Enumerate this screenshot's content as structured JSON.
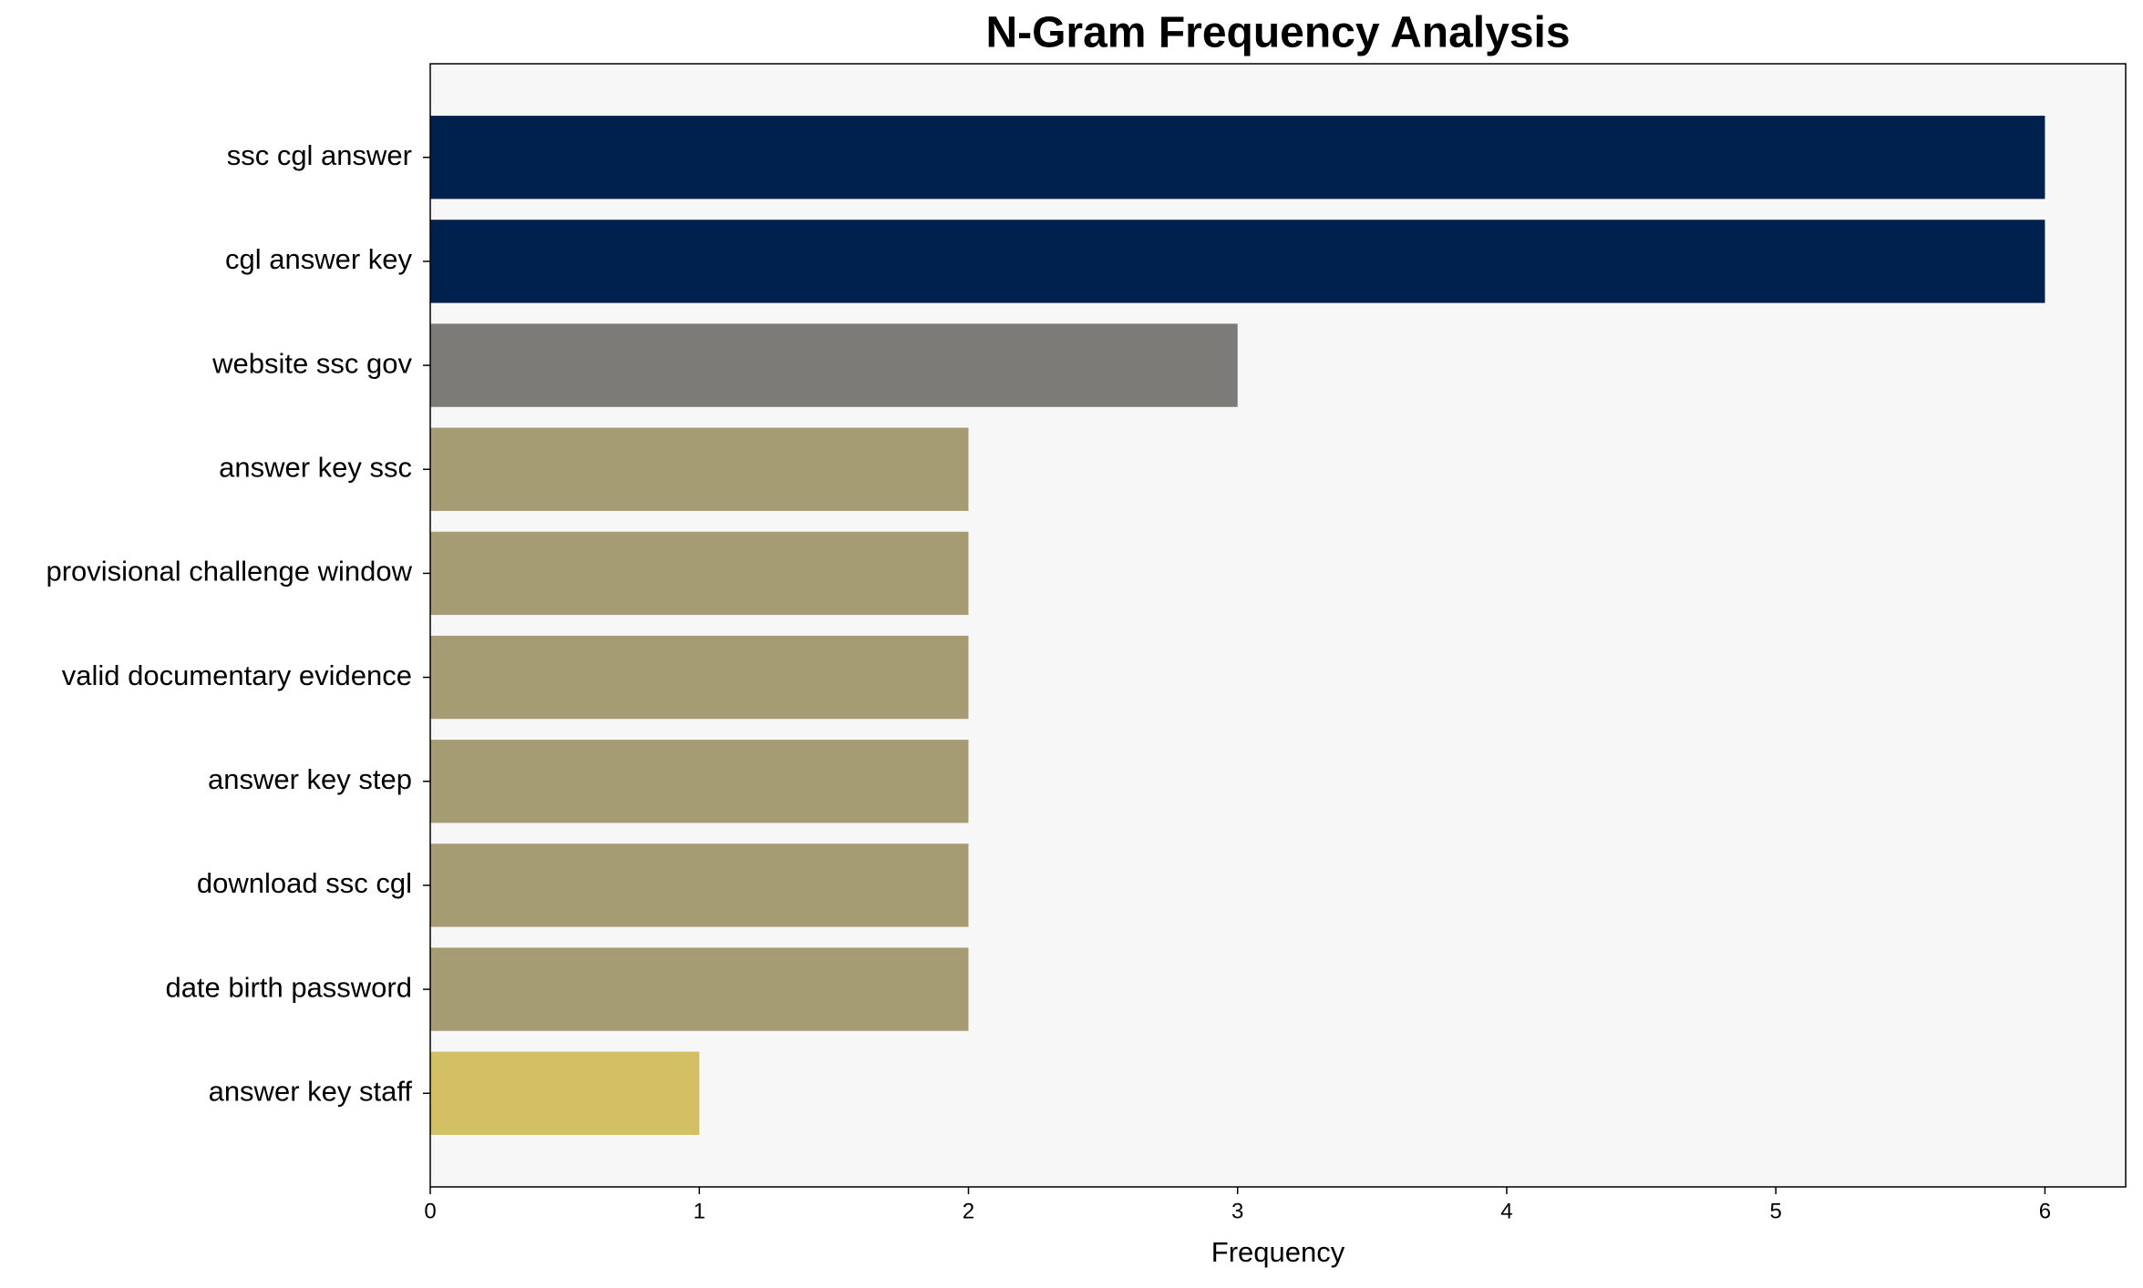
{
  "chart_data": {
    "type": "barh",
    "title": "N-Gram Frequency Analysis",
    "xlabel": "Frequency",
    "categories": [
      "ssc cgl answer",
      "cgl answer key",
      "website ssc gov",
      "answer key ssc",
      "provisional challenge window",
      "valid documentary evidence",
      "answer key step",
      "download ssc cgl",
      "date birth password",
      "answer key staff"
    ],
    "values": [
      6,
      6,
      3,
      2,
      2,
      2,
      2,
      2,
      2,
      1
    ],
    "colors": [
      "#00214e",
      "#00214e",
      "#7c7b78",
      "#a59c74",
      "#a59c74",
      "#a59c74",
      "#a59c74",
      "#a59c74",
      "#a59c74",
      "#d3c064"
    ],
    "xlim": [
      0,
      6.3
    ],
    "xticks": [
      0,
      1,
      2,
      3,
      4,
      5,
      6
    ],
    "grid": false
  }
}
